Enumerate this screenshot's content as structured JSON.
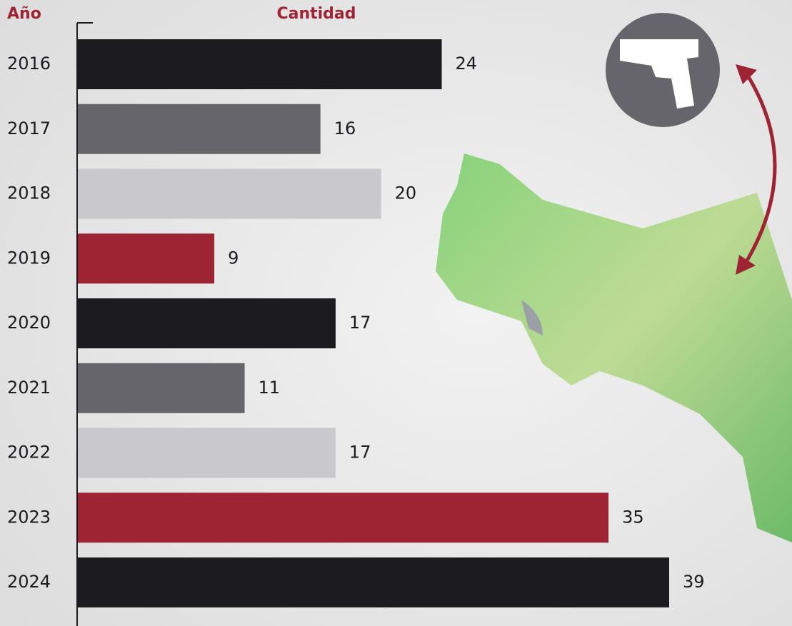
{
  "chart_data": {
    "type": "bar",
    "orientation": "horizontal",
    "y_label": "Año",
    "x_label": "Cantidad",
    "categories": [
      "2016",
      "2017",
      "2018",
      "2019",
      "2020",
      "2021",
      "2022",
      "2023",
      "2024"
    ],
    "values": [
      24,
      16,
      20,
      9,
      17,
      11,
      17,
      35,
      39
    ],
    "colors": [
      "#1b1b20",
      "#66656b",
      "#c9c8cd",
      "#9e2333",
      "#1b1b20",
      "#66656b",
      "#c9c8cd",
      "#9e2333",
      "#1b1b20"
    ]
  }
}
